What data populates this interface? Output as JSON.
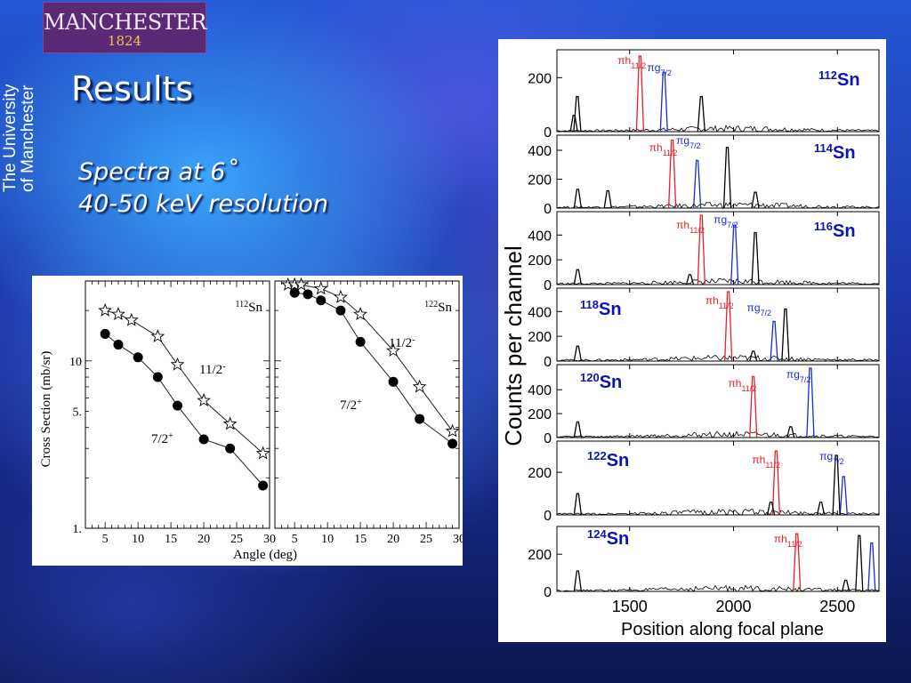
{
  "header": {
    "logo_text": "MANCHESTER",
    "logo_year": "1824",
    "vertical_line1": "The University",
    "vertical_line2": "of Manchester"
  },
  "slide": {
    "title": "Results",
    "subtitle_line1": "Spectra at 6˚",
    "subtitle_line2": "40-50 keV resolution"
  },
  "colors": {
    "red": "#e8202a",
    "blue": "#1a2bd8",
    "black": "#000000",
    "nucleus_label": "#0a14b4"
  },
  "chart_data": [
    {
      "type": "scatter",
      "title": "",
      "xlabel": "Angle (deg)",
      "ylabel": "Cross Section (mb/sr)",
      "yscale": "log",
      "ylim": [
        1,
        30
      ],
      "xlim": [
        2,
        30
      ],
      "y_ticks": [
        {
          "v": 1,
          "label": "1."
        },
        {
          "v": 5,
          "label": "5."
        },
        {
          "v": 10,
          "label": "10"
        }
      ],
      "x_ticks_left": [
        5,
        10,
        15,
        20,
        25,
        30
      ],
      "x_ticks_right": [
        5,
        10,
        15,
        20,
        25,
        30
      ],
      "panels": [
        {
          "label_sup": "112",
          "label_el": "Sn",
          "series": [
            {
              "name": "11/2⁻",
              "label_main": "11/2",
              "label_sup": "-",
              "marker": "star",
              "x": [
                5,
                7,
                9,
                13,
                16,
                20,
                24,
                29
              ],
              "y": [
                20,
                19,
                17.5,
                14,
                9.5,
                5.8,
                4.2,
                2.8
              ]
            },
            {
              "name": "7/2⁺",
              "label_main": "7/2",
              "label_sup": "+",
              "marker": "circle",
              "x": [
                5,
                7,
                10,
                13,
                16,
                20,
                24,
                29
              ],
              "y": [
                14.5,
                12.5,
                10.5,
                8,
                5.4,
                3.4,
                3,
                1.8
              ]
            }
          ]
        },
        {
          "label_sup": "122",
          "label_el": "Sn",
          "series": [
            {
              "name": "11/2⁻",
              "label_main": "11/2",
              "label_sup": "-",
              "marker": "star",
              "x": [
                4,
                5,
                6,
                9,
                12,
                15,
                20,
                24,
                29
              ],
              "y": [
                28.5,
                28.5,
                28.5,
                27,
                24,
                19,
                11.5,
                7,
                3.8
              ]
            },
            {
              "name": "7/2⁺",
              "label_main": "7/2",
              "label_sup": "+",
              "marker": "circle",
              "x": [
                5,
                7,
                9,
                12,
                15,
                20,
                24,
                29
              ],
              "y": [
                25.5,
                25,
                23,
                20,
                13,
                7.5,
                4.5,
                3.2
              ]
            }
          ]
        }
      ]
    },
    {
      "type": "line",
      "title": "",
      "xlabel": "Position along focal plane",
      "ylabel": "Counts per channel",
      "xlim": [
        1150,
        2700
      ],
      "x_ticks": [
        1500,
        2000,
        2500
      ],
      "panels": [
        {
          "nucleus_sup": "112",
          "nucleus_el": "Sn",
          "ymax": 290,
          "yticks": [
            0,
            200
          ],
          "peaks": [
            {
              "x": 1550,
              "h": 280,
              "c": "red"
            },
            {
              "x": 1665,
              "h": 220,
              "c": "blue"
            },
            {
              "x": 1845,
              "h": 130,
              "c": "black"
            },
            {
              "x": 1248,
              "h": 130,
              "c": "black"
            },
            {
              "x": 1232,
              "h": 60,
              "c": "black"
            }
          ],
          "labels": {
            "h": "πh",
            "h_sub": "11/2",
            "g": "πg",
            "g_sub": "7/2"
          }
        },
        {
          "nucleus_sup": "114",
          "nucleus_el": "Sn",
          "ymax": 480,
          "yticks": [
            0,
            200,
            400
          ],
          "peaks": [
            {
              "x": 1705,
              "h": 470,
              "c": "red"
            },
            {
              "x": 1825,
              "h": 330,
              "c": "blue"
            },
            {
              "x": 1970,
              "h": 420,
              "c": "black"
            },
            {
              "x": 1250,
              "h": 130,
              "c": "black"
            },
            {
              "x": 1395,
              "h": 120,
              "c": "black"
            },
            {
              "x": 2105,
              "h": 110,
              "c": "black"
            }
          ],
          "labels": {
            "h": "πh",
            "h_sub": "11/2",
            "g": "πg",
            "g_sub": "7/2"
          }
        },
        {
          "nucleus_sup": "116",
          "nucleus_el": "Sn",
          "ymax": 560,
          "yticks": [
            0,
            200,
            400
          ],
          "peaks": [
            {
              "x": 1845,
              "h": 560,
              "c": "red"
            },
            {
              "x": 2005,
              "h": 480,
              "c": "blue"
            },
            {
              "x": 2105,
              "h": 420,
              "c": "black"
            },
            {
              "x": 1250,
              "h": 120,
              "c": "black"
            },
            {
              "x": 1790,
              "h": 80,
              "c": "black"
            }
          ],
          "labels": {
            "h": "πh",
            "h_sub": "11/2",
            "g": "πg",
            "g_sub": "7/2"
          }
        },
        {
          "nucleus_sup": "118",
          "nucleus_el": "Sn",
          "ymax": 560,
          "yticks": [
            0,
            200,
            400
          ],
          "peaks": [
            {
              "x": 1975,
              "h": 560,
              "c": "red"
            },
            {
              "x": 2195,
              "h": 320,
              "c": "blue"
            },
            {
              "x": 2250,
              "h": 420,
              "c": "black"
            },
            {
              "x": 1250,
              "h": 120,
              "c": "black"
            },
            {
              "x": 2095,
              "h": 80,
              "c": "black"
            }
          ],
          "labels": {
            "h": "πh",
            "h_sub": "11/2",
            "g": "πg",
            "g_sub": "7/2"
          }
        },
        {
          "nucleus_sup": "120",
          "nucleus_el": "Sn",
          "ymax": 580,
          "yticks": [
            0,
            200,
            400
          ],
          "peaks": [
            {
              "x": 2095,
              "h": 510,
              "c": "red"
            },
            {
              "x": 2370,
              "h": 580,
              "c": "blue"
            },
            {
              "x": 1250,
              "h": 130,
              "c": "black"
            },
            {
              "x": 2275,
              "h": 90,
              "c": "black"
            }
          ],
          "labels": {
            "h": "πh",
            "h_sub": "11/2",
            "g": "πg",
            "g_sub": "7/2"
          }
        },
        {
          "nucleus_sup": "122",
          "nucleus_el": "Sn",
          "ymax": 330,
          "yticks": [
            0,
            200
          ],
          "peaks": [
            {
              "x": 2205,
              "h": 300,
              "c": "red"
            },
            {
              "x": 2530,
              "h": 180,
              "c": "blue"
            },
            {
              "x": 2495,
              "h": 280,
              "c": "black"
            },
            {
              "x": 1250,
              "h": 100,
              "c": "black"
            },
            {
              "x": 2180,
              "h": 60,
              "c": "black"
            },
            {
              "x": 2420,
              "h": 60,
              "c": "black"
            }
          ],
          "labels": {
            "h": "πh",
            "h_sub": "11/2",
            "g": "πg",
            "g_sub": "7/2"
          }
        },
        {
          "nucleus_sup": "124",
          "nucleus_el": "Sn",
          "ymax": 330,
          "yticks": [
            0,
            200
          ],
          "peaks": [
            {
              "x": 2305,
              "h": 310,
              "c": "red"
            },
            {
              "x": 2665,
              "h": 260,
              "c": "blue"
            },
            {
              "x": 2605,
              "h": 300,
              "c": "black"
            },
            {
              "x": 1250,
              "h": 110,
              "c": "black"
            },
            {
              "x": 2540,
              "h": 60,
              "c": "black"
            }
          ],
          "labels": {
            "h": "πh",
            "h_sub": "11/2",
            "g": "",
            "g_sub": ""
          }
        }
      ]
    }
  ]
}
